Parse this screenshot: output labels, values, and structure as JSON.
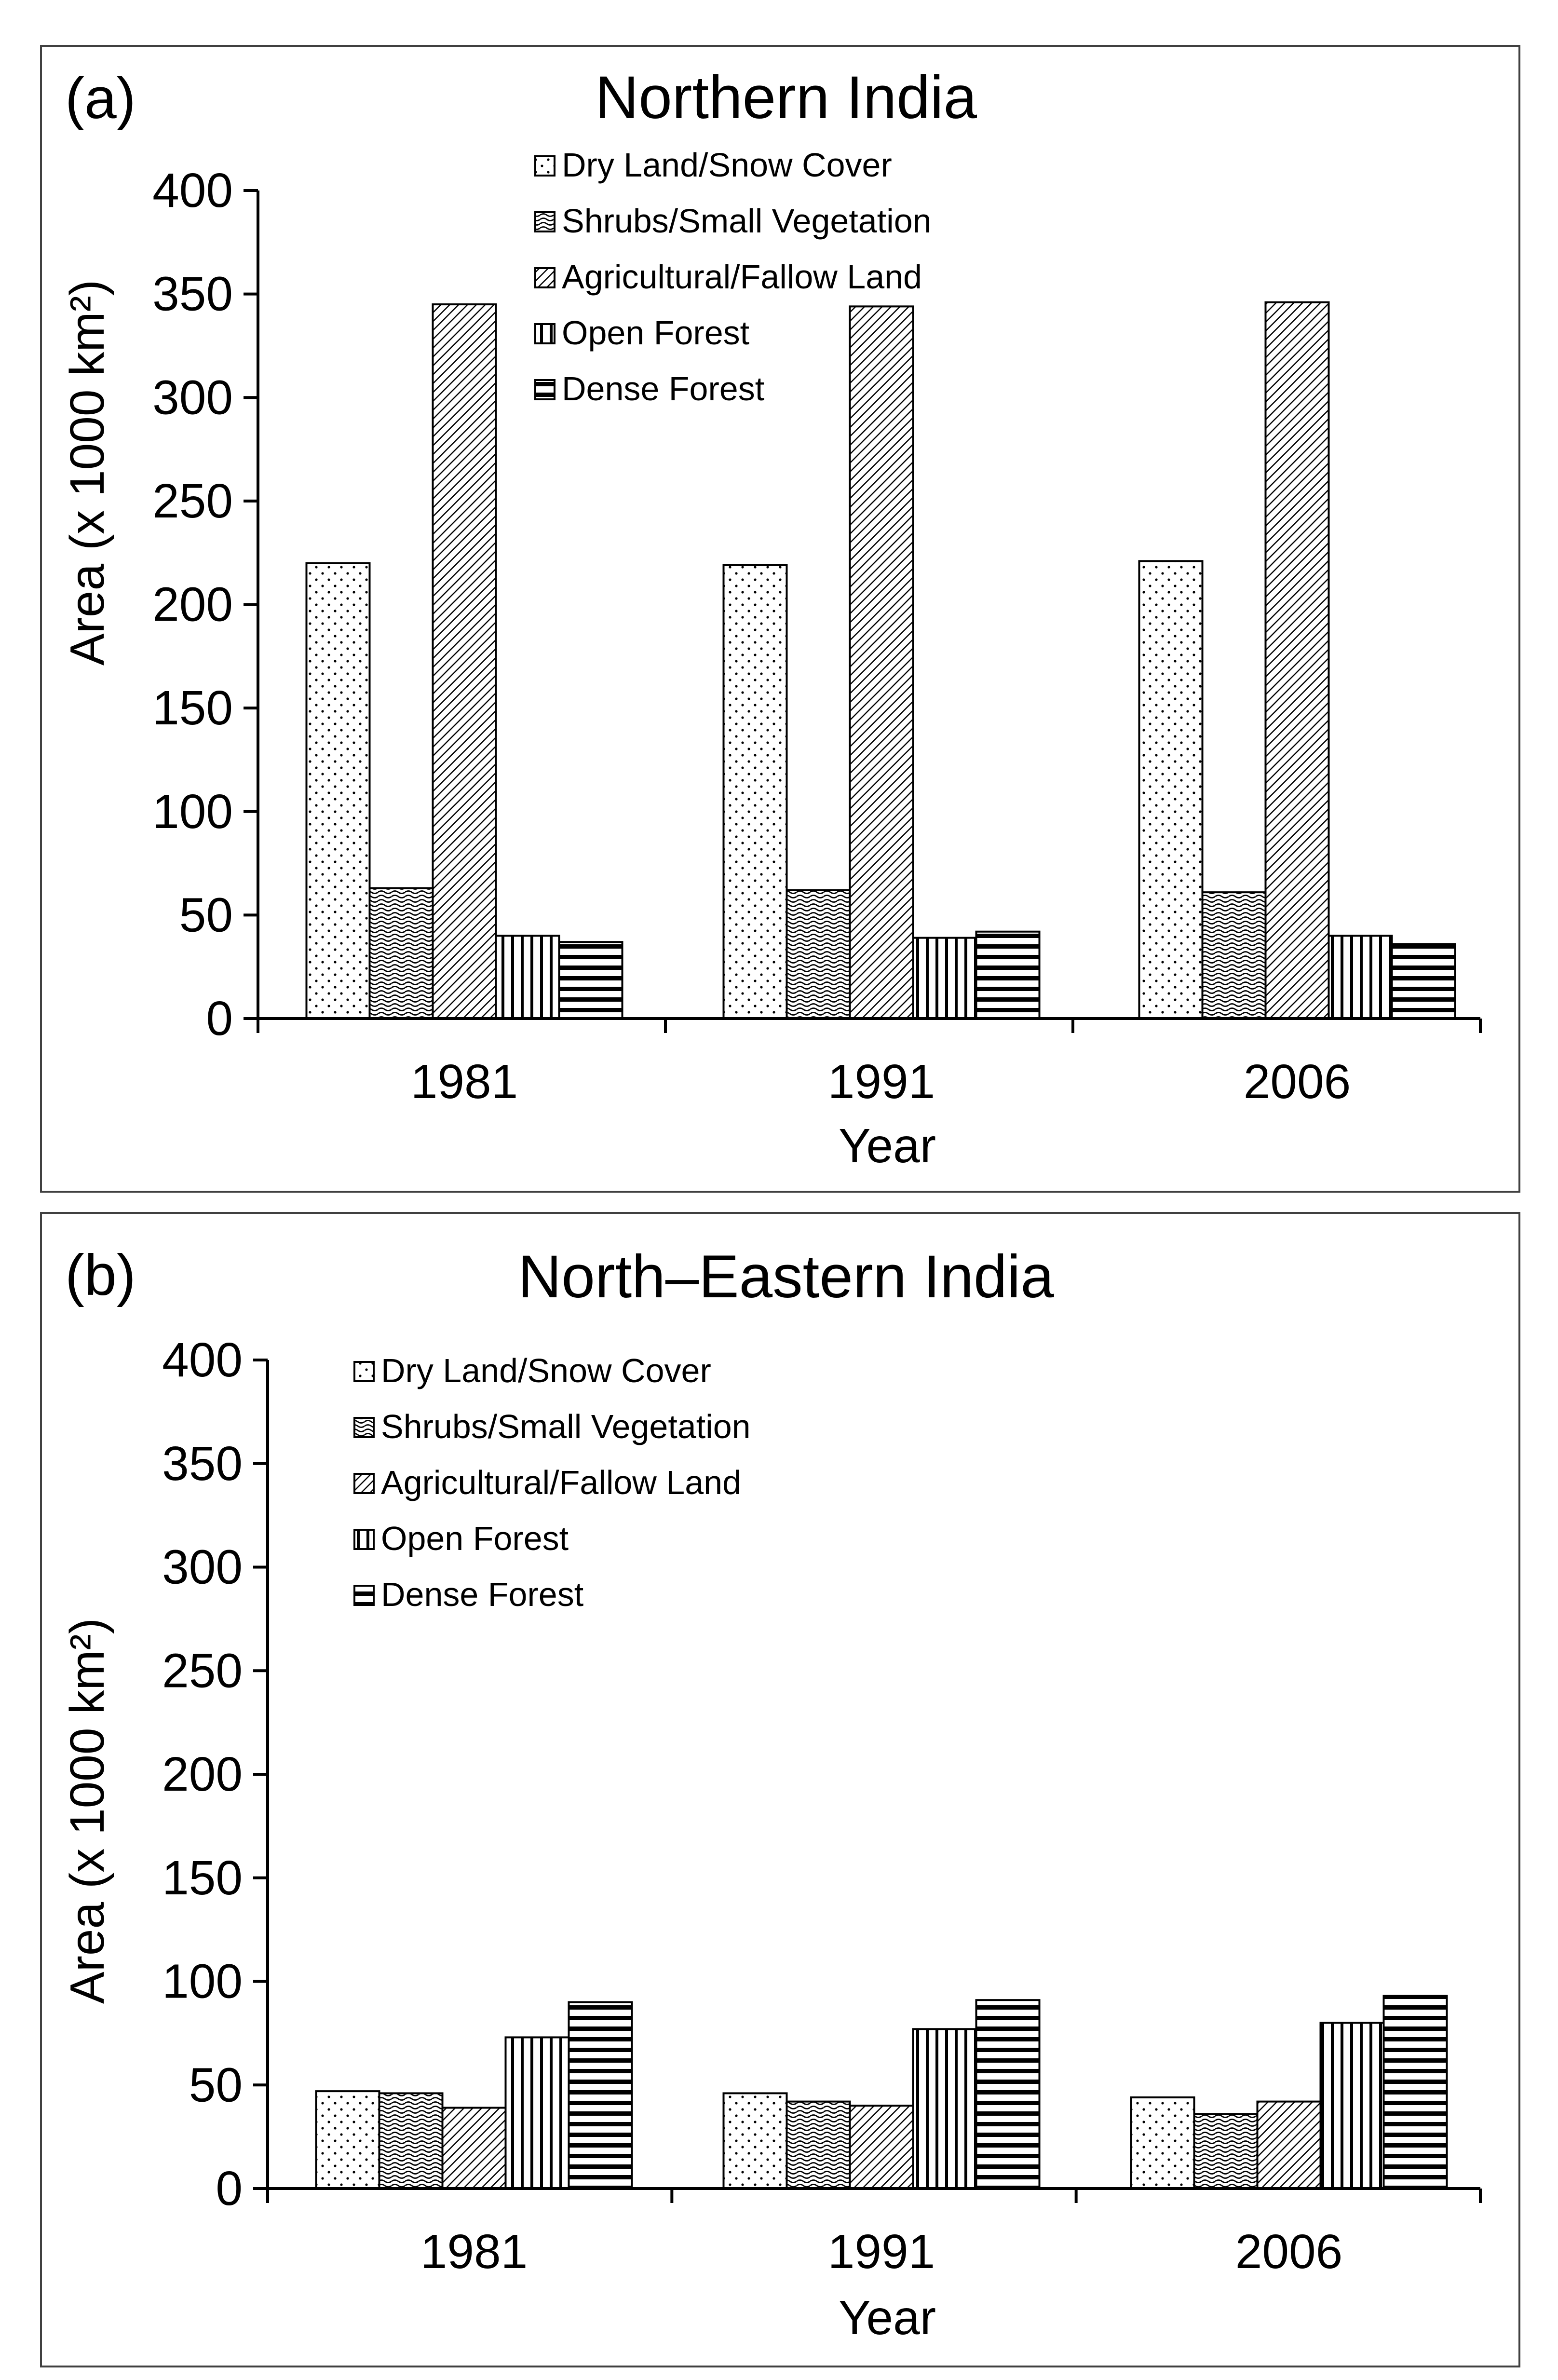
{
  "chart_data": [
    {
      "panel_label": "(a)",
      "type": "bar",
      "title": "Northern India",
      "xlabel": "Year",
      "ylabel": "Area (x 1000 km²)",
      "ylim": [
        0,
        400
      ],
      "yticks": [
        "0",
        "50",
        "100",
        "150",
        "200",
        "250",
        "300",
        "350",
        "400"
      ],
      "categories": [
        "1981",
        "1991",
        "2006"
      ],
      "legend_position": "top-center",
      "series": [
        {
          "name": "Dry Land/Snow Cover",
          "pattern": "dots",
          "values": [
            220,
            219,
            221
          ]
        },
        {
          "name": "Shrubs/Small Vegetation",
          "pattern": "waves",
          "values": [
            63,
            62,
            61
          ]
        },
        {
          "name": "Agricultural/Fallow Land",
          "pattern": "diagonal",
          "values": [
            345,
            344,
            346
          ]
        },
        {
          "name": "Open Forest",
          "pattern": "vertical",
          "values": [
            40,
            39,
            40
          ]
        },
        {
          "name": "Dense Forest",
          "pattern": "horizontal",
          "values": [
            37,
            42,
            36
          ]
        }
      ]
    },
    {
      "panel_label": "(b)",
      "type": "bar",
      "title": "North–Eastern India",
      "xlabel": "Year",
      "ylabel": "Area (x 1000 km²)",
      "ylim": [
        0,
        400
      ],
      "yticks": [
        "0",
        "50",
        "100",
        "150",
        "200",
        "250",
        "300",
        "350",
        "400"
      ],
      "categories": [
        "1981",
        "1991",
        "2006"
      ],
      "legend_position": "top-left",
      "series": [
        {
          "name": "Dry Land/Snow Cover",
          "pattern": "dots",
          "values": [
            47,
            46,
            44
          ]
        },
        {
          "name": "Shrubs/Small Vegetation",
          "pattern": "waves",
          "values": [
            46,
            42,
            36
          ]
        },
        {
          "name": "Agricultural/Fallow Land",
          "pattern": "diagonal",
          "values": [
            39,
            40,
            42
          ]
        },
        {
          "name": "Open Forest",
          "pattern": "vertical",
          "values": [
            73,
            77,
            80
          ]
        },
        {
          "name": "Dense Forest",
          "pattern": "horizontal",
          "values": [
            90,
            91,
            93
          ]
        }
      ]
    }
  ],
  "colors": {
    "ink": "#000000",
    "background": "#ffffff",
    "frame": "#404040"
  }
}
